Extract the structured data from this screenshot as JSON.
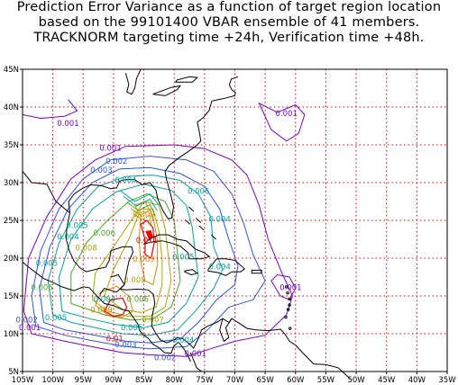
{
  "title": {
    "line1": "Prediction Error Variance as a function of target region location",
    "line2": "based on the 99101400 VBAR ensemble of 41 members.",
    "line3": "TRACKNORM targeting time +24h, Verification time +48h."
  },
  "axes": {
    "lon_ticks": [
      "105W",
      "100W",
      "95W",
      "90W",
      "85W",
      "80W",
      "75W",
      "70W",
      "65W",
      "60W",
      "55W",
      "50W",
      "45W",
      "40W",
      "35W"
    ],
    "lat_ticks": [
      "45N",
      "40N",
      "35N",
      "30N",
      "25N",
      "20N",
      "15N",
      "10N",
      "5N"
    ]
  },
  "contour_labels": [
    {
      "text": "0.001",
      "lon": 97.5,
      "lat": 37.5,
      "color": "#7a00cc"
    },
    {
      "text": "0.001",
      "lon": 61.5,
      "lat": 38.8,
      "color": "#7a00cc"
    },
    {
      "text": "0.001",
      "lon": 90.5,
      "lat": 34.2,
      "color": "#7a00cc"
    },
    {
      "text": "0.002",
      "lon": 89.5,
      "lat": 32.5,
      "color": "#3355dd"
    },
    {
      "text": "0.003",
      "lon": 92.0,
      "lat": 31.3,
      "color": "#2255ee"
    },
    {
      "text": "0.004",
      "lon": 88.0,
      "lat": 30.0,
      "color": "#00a3a3"
    },
    {
      "text": "0.006",
      "lon": 76.0,
      "lat": 28.5,
      "color": "#00a3a3"
    },
    {
      "text": "0.004",
      "lon": 72.5,
      "lat": 24.8,
      "color": "#00a3a3"
    },
    {
      "text": "0.005",
      "lon": 96.0,
      "lat": 24.0,
      "color": "#00a3a3"
    },
    {
      "text": "0.004",
      "lon": 97.5,
      "lat": 22.5,
      "color": "#00a3a3"
    },
    {
      "text": "0.006",
      "lon": 91.5,
      "lat": 23.0,
      "color": "#44aa22"
    },
    {
      "text": "0.008",
      "lon": 94.5,
      "lat": 21.0,
      "color": "#aaaa00"
    },
    {
      "text": "0.005",
      "lon": 101.0,
      "lat": 19.0,
      "color": "#00a3a3"
    },
    {
      "text": "0.009",
      "lon": 85.0,
      "lat": 25.5,
      "color": "#dd8800"
    },
    {
      "text": "0.011",
      "lon": 84.5,
      "lat": 22.0,
      "color": "#ee0000"
    },
    {
      "text": "0.009",
      "lon": 85.0,
      "lat": 19.5,
      "color": "#dd8800"
    },
    {
      "text": "0.008",
      "lon": 86.5,
      "lat": 16.8,
      "color": "#aaaa00"
    },
    {
      "text": "0.005",
      "lon": 78.5,
      "lat": 19.8,
      "color": "#00a3a3"
    },
    {
      "text": "0.004",
      "lon": 72.5,
      "lat": 18.5,
      "color": "#00a3a3"
    },
    {
      "text": "0.001",
      "lon": 60.8,
      "lat": 15.8,
      "color": "#7a00cc"
    },
    {
      "text": "0.006",
      "lon": 101.8,
      "lat": 15.8,
      "color": "#44aa22"
    },
    {
      "text": "0.004",
      "lon": 91.5,
      "lat": 14.2,
      "color": "#00a3a3"
    },
    {
      "text": "0.009",
      "lon": 92.0,
      "lat": 12.8,
      "color": "#dd8800"
    },
    {
      "text": "0.006",
      "lon": 86.0,
      "lat": 14.2,
      "color": "#44aa22"
    },
    {
      "text": "0.005",
      "lon": 99.5,
      "lat": 11.8,
      "color": "#00a3a3"
    },
    {
      "text": "0.002",
      "lon": 104.3,
      "lat": 11.5,
      "color": "#3355dd"
    },
    {
      "text": "0.001",
      "lon": 103.8,
      "lat": 10.5,
      "color": "#7a00cc"
    },
    {
      "text": "0.007",
      "lon": 83.5,
      "lat": 11.5,
      "color": "#aaaa00"
    },
    {
      "text": "0.005",
      "lon": 87.0,
      "lat": 10.5,
      "color": "#00a3a3"
    },
    {
      "text": "0.004",
      "lon": 78.5,
      "lat": 8.8,
      "color": "#00a3a3"
    },
    {
      "text": "0.01",
      "lon": 89.8,
      "lat": 9.0,
      "color": "#ee0000"
    },
    {
      "text": "0.003",
      "lon": 88.0,
      "lat": 8.2,
      "color": "#2255ee"
    },
    {
      "text": "0.002",
      "lon": 81.5,
      "lat": 6.5,
      "color": "#3355dd"
    },
    {
      "text": "0.001",
      "lon": 76.5,
      "lat": 7.0,
      "color": "#7a00cc"
    }
  ],
  "colors": {
    "grid": "#dd0000",
    "coast": "#000000",
    "c001": "#7a00cc",
    "c002": "#3355dd",
    "c003": "#2255ee",
    "c004": "#00a3a3",
    "c005": "#00a3a3",
    "c006": "#44aa22",
    "c007": "#aaaa00",
    "c008": "#aaaa00",
    "c009": "#dd8800",
    "c010": "#ee0000",
    "c011": "#ee0000"
  }
}
